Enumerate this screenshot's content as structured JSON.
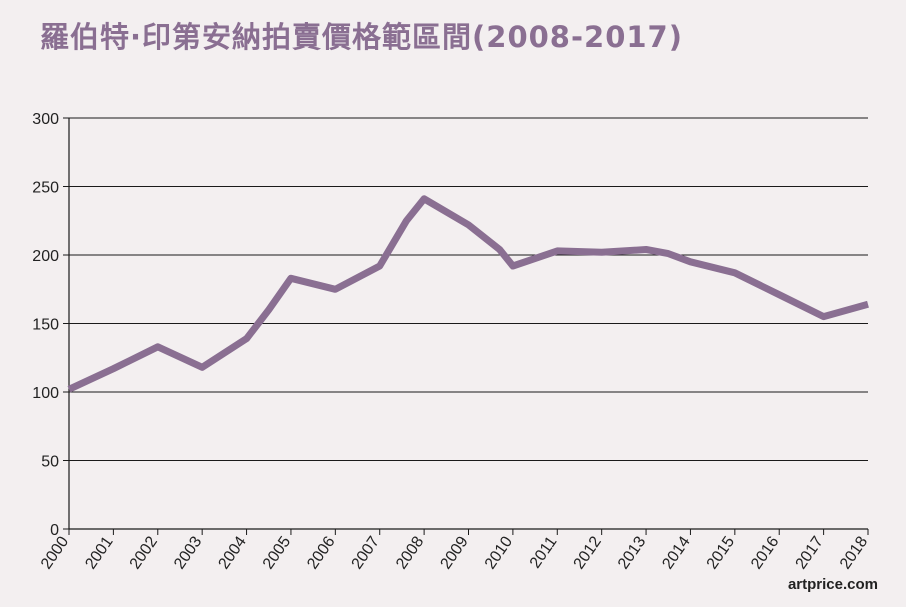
{
  "chart_data": {
    "type": "line",
    "title": "羅伯特·印第安納拍賣價格範區間(2008-2017)",
    "xlabel": "",
    "ylabel": "",
    "ylim": [
      0,
      300
    ],
    "yticks": [
      0,
      50,
      100,
      150,
      200,
      250,
      300
    ],
    "xlim": [
      2000,
      2018
    ],
    "xticks": [
      "2000",
      "2001",
      "2002",
      "2003",
      "2004",
      "2005",
      "2006",
      "2007",
      "2008",
      "2009",
      "2010",
      "2011",
      "2012",
      "2013",
      "2014",
      "2015",
      "2016",
      "2017",
      "2018"
    ],
    "grid": true,
    "series": [
      {
        "points": [
          [
            2000,
            102
          ],
          [
            2001,
            117
          ],
          [
            2002,
            133
          ],
          [
            2003,
            118
          ],
          [
            2004,
            139
          ],
          [
            2004.5,
            160
          ],
          [
            2005,
            183
          ],
          [
            2006,
            175
          ],
          [
            2007,
            192
          ],
          [
            2007.6,
            225
          ],
          [
            2008,
            241
          ],
          [
            2009,
            222
          ],
          [
            2009.7,
            204
          ],
          [
            2010,
            192
          ],
          [
            2011,
            203
          ],
          [
            2012,
            202
          ],
          [
            2013,
            204
          ],
          [
            2013.5,
            201
          ],
          [
            2014,
            195
          ],
          [
            2015,
            187
          ],
          [
            2016,
            171
          ],
          [
            2017,
            155
          ],
          [
            2018,
            164
          ]
        ]
      }
    ]
  },
  "watermark": "artprice.com",
  "colors": {
    "line": "#8a6f92",
    "title": "#8a6f92",
    "background": "#f3eff0",
    "grid": "#1a1a1a"
  }
}
